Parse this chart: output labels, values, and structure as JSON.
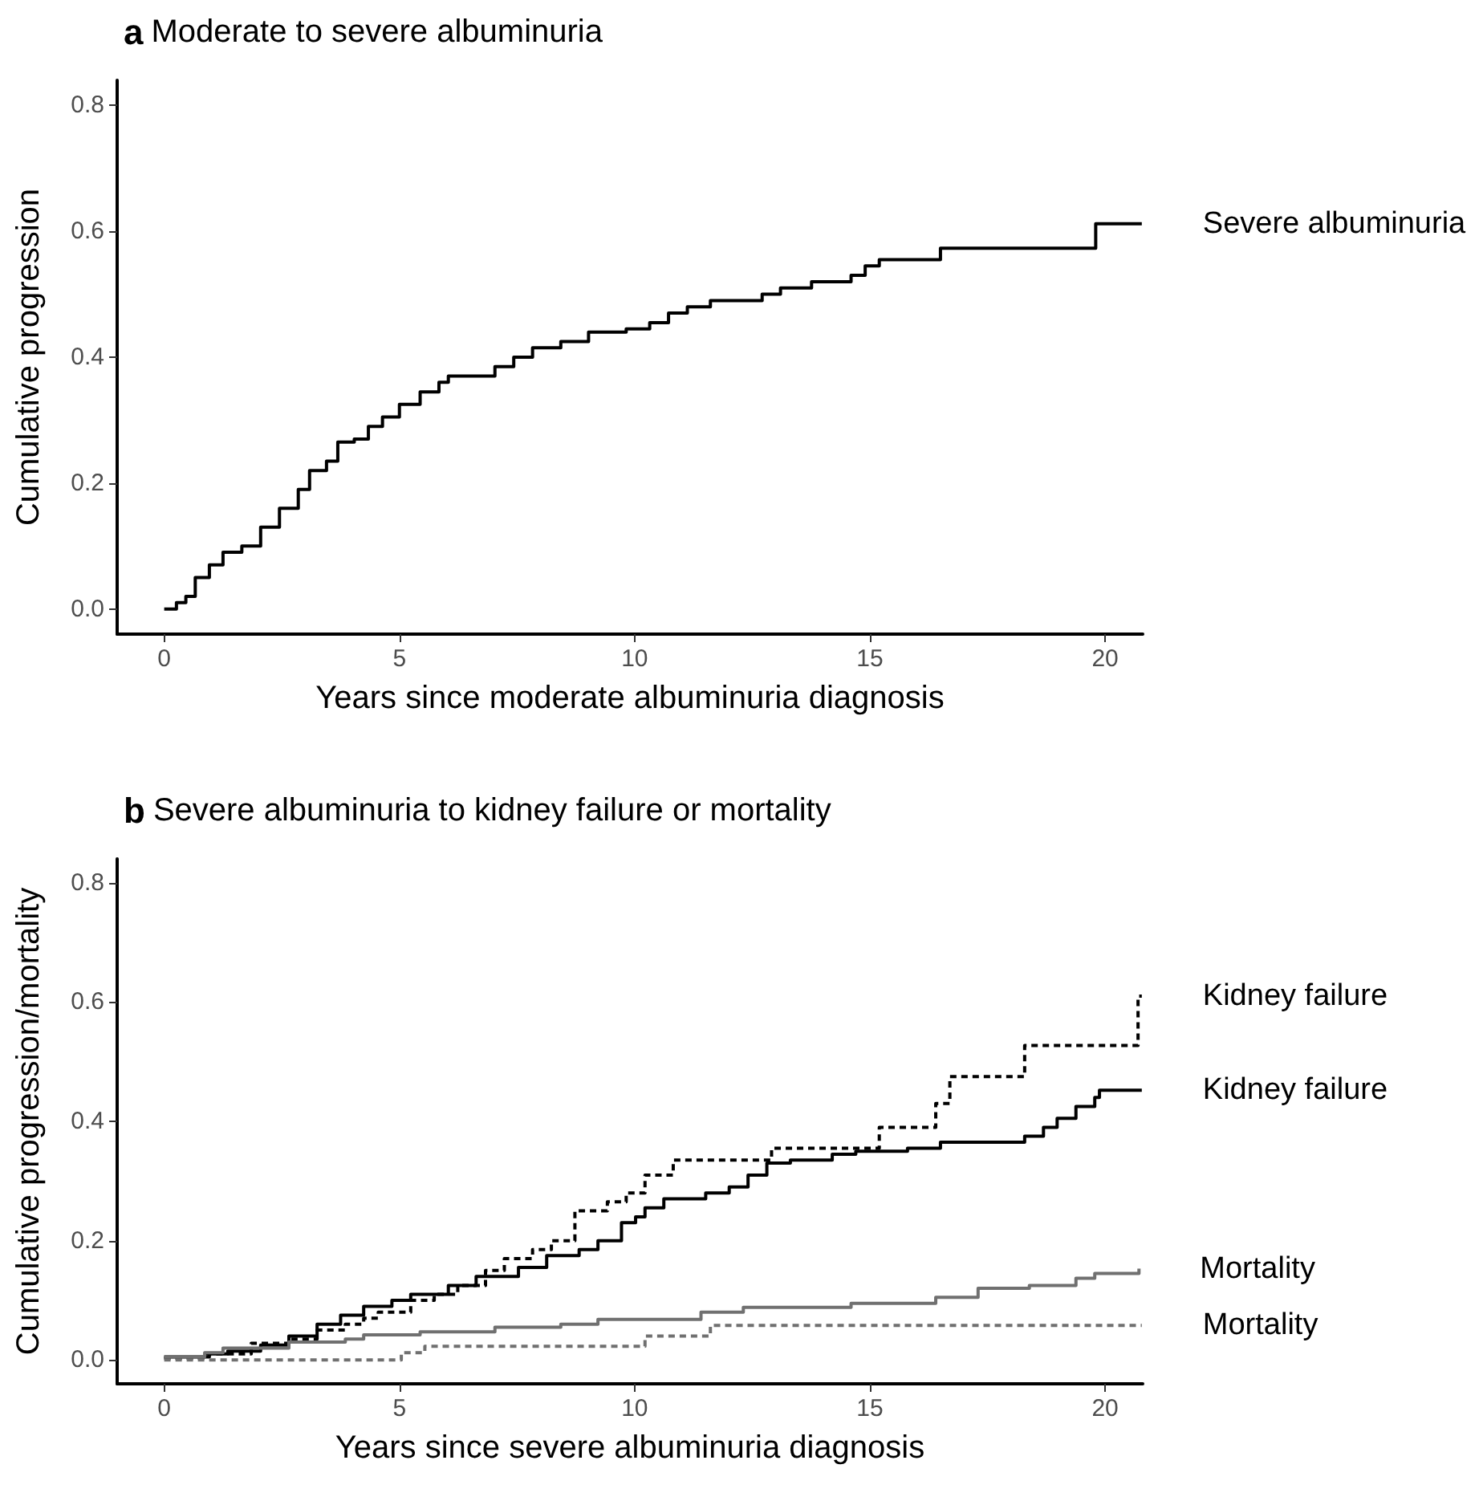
{
  "chart_data": [
    {
      "type": "step",
      "title": "a Moderate to severe albuminuria",
      "xlabel": "Years since moderate albuminuria diagnosis",
      "ylabel": "Cumulative progression",
      "xlim": [
        -1,
        20.8
      ],
      "ylim": [
        -0.04,
        0.84
      ],
      "xticks": [
        0,
        5,
        10,
        15,
        20
      ],
      "yticks": [
        {
          "value": 0,
          "label": "0.0"
        },
        {
          "value": 0.2,
          "label": "0.2"
        },
        {
          "value": 0.4,
          "label": "0.4"
        },
        {
          "value": 0.6,
          "label": "0.6"
        },
        {
          "value": 0.8,
          "label": "0.8"
        }
      ],
      "grid": false,
      "legend": false,
      "series": [
        {
          "name": "Severe albuminuria",
          "color": "#000000",
          "line_style": "solid",
          "x": [
            0,
            0.26,
            0.46,
            0.66,
            0.96,
            1.25,
            1.65,
            2.05,
            2.45,
            2.85,
            3.09,
            3.45,
            3.69,
            4.04,
            4.34,
            4.64,
            5.0,
            5.44,
            5.84,
            6.04,
            6.73,
            7.03,
            7.43,
            7.83,
            8.43,
            9.02,
            9.82,
            10.32,
            10.72,
            11.12,
            11.61,
            12.71,
            13.1,
            13.76,
            14.6,
            14.9,
            15.2,
            16.5,
            19.8,
            20.78
          ],
          "values": [
            0,
            0.01,
            0.02,
            0.05,
            0.07,
            0.09,
            0.1,
            0.13,
            0.16,
            0.19,
            0.22,
            0.235,
            0.265,
            0.27,
            0.29,
            0.305,
            0.325,
            0.345,
            0.36,
            0.37,
            0.37,
            0.385,
            0.4,
            0.415,
            0.425,
            0.44,
            0.445,
            0.455,
            0.47,
            0.48,
            0.49,
            0.5,
            0.51,
            0.52,
            0.53,
            0.545,
            0.555,
            0.573,
            0.612,
            0.612
          ]
        }
      ]
    },
    {
      "type": "step",
      "title": "b Severe albuminuria to kidney failure or mortality",
      "xlabel": "Years since severe albuminuria diagnosis",
      "ylabel": "Cumulative progression/mortality",
      "xlim": [
        -1,
        20.8
      ],
      "ylim": [
        -0.04,
        0.84
      ],
      "xticks": [
        0,
        5,
        10,
        15,
        20
      ],
      "yticks": [
        {
          "value": 0,
          "label": "0.0"
        },
        {
          "value": 0.2,
          "label": "0.2"
        },
        {
          "value": 0.4,
          "label": "0.4"
        },
        {
          "value": 0.6,
          "label": "0.6"
        },
        {
          "value": 0.8,
          "label": "0.8"
        }
      ],
      "grid": false,
      "legend": false,
      "series": [
        {
          "name": "Kidney failure",
          "color": "#000000",
          "line_style": "dashed",
          "x": [
            0,
            0.9,
            1.85,
            2.65,
            3.25,
            3.85,
            4.24,
            4.55,
            5.24,
            5.74,
            6.24,
            6.83,
            7.23,
            7.83,
            8.23,
            8.73,
            9.42,
            9.82,
            10.22,
            10.82,
            12.91,
            15.2,
            16.4,
            16.7,
            18.29,
            20.7,
            20.78
          ],
          "values": [
            0.003,
            0.01,
            0.028,
            0.035,
            0.05,
            0.06,
            0.07,
            0.08,
            0.1,
            0.11,
            0.125,
            0.15,
            0.17,
            0.185,
            0.2,
            0.25,
            0.265,
            0.28,
            0.31,
            0.335,
            0.355,
            0.39,
            0.43,
            0.475,
            0.527,
            0.61,
            0.61
          ]
        },
        {
          "name": "Kidney failure",
          "color": "#000000",
          "line_style": "solid",
          "x": [
            0,
            0.96,
            1.35,
            2.05,
            2.65,
            3.25,
            3.75,
            4.24,
            4.84,
            5.24,
            6.04,
            6.63,
            7.53,
            8.13,
            8.82,
            9.22,
            9.72,
            10.02,
            10.22,
            10.62,
            11.51,
            12.01,
            12.41,
            12.81,
            13.31,
            14.2,
            14.7,
            15.8,
            16.5,
            18.29,
            18.69,
            18.98,
            19.38,
            19.78,
            19.88,
            20.78
          ],
          "values": [
            0.005,
            0.01,
            0.015,
            0.025,
            0.04,
            0.06,
            0.075,
            0.09,
            0.1,
            0.11,
            0.125,
            0.14,
            0.155,
            0.175,
            0.185,
            0.2,
            0.23,
            0.24,
            0.255,
            0.27,
            0.28,
            0.29,
            0.31,
            0.33,
            0.335,
            0.345,
            0.35,
            0.355,
            0.365,
            0.375,
            0.39,
            0.405,
            0.425,
            0.44,
            0.452,
            0.452
          ]
        },
        {
          "name": "Mortality",
          "color": "#707070",
          "line_style": "solid",
          "x": [
            0,
            0.86,
            1.25,
            2.65,
            3.85,
            4.24,
            5.44,
            7.03,
            8.43,
            9.22,
            11.41,
            12.31,
            14.6,
            16.4,
            17.3,
            18.39,
            19.38,
            19.78,
            20.72
          ],
          "values": [
            0.005,
            0.012,
            0.02,
            0.03,
            0.035,
            0.042,
            0.047,
            0.055,
            0.06,
            0.068,
            0.08,
            0.088,
            0.095,
            0.105,
            0.12,
            0.125,
            0.137,
            0.145,
            0.153
          ]
        },
        {
          "name": "Mortality",
          "color": "#707070",
          "line_style": "dashed",
          "x": [
            0,
            5.04,
            5.54,
            10.22,
            11.61,
            20.78
          ],
          "values": [
            0,
            0.012,
            0.023,
            0.04,
            0.058,
            0.058
          ]
        }
      ]
    }
  ]
}
